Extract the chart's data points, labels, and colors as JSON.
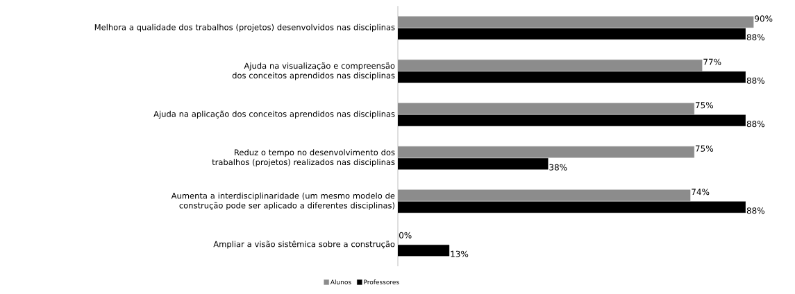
{
  "chart_data": {
    "type": "bar",
    "orientation": "horizontal",
    "categories": [
      "Melhora a qualidade dos trabalhos (projetos) desenvolvidos nas disciplinas",
      "Ajuda na visualização e compreensão dos conceitos aprendidos nas disciplinas",
      "Ajuda na aplicação dos conceitos aprendidos nas disciplinas",
      "Reduz o tempo no desenvolvimento dos trabalhos (projetos) realizados nas disciplinas",
      "Aumenta a interdisciplinaridade (um mesmo modelo de construção pode ser aplicado a diferentes disciplinas)",
      "Ampliar a visão sistêmica sobre a construção"
    ],
    "series": [
      {
        "name": "Alunos",
        "color": "#8c8c8c",
        "values": [
          90,
          77,
          75,
          75,
          74,
          0
        ],
        "value_labels": [
          "90%",
          "77%",
          "75%",
          "75%",
          "74%",
          "0%"
        ]
      },
      {
        "name": "Professores",
        "color": "#000000",
        "values": [
          88,
          88,
          88,
          38,
          88,
          13
        ],
        "value_labels": [
          "88%",
          "88%",
          "88%",
          "38%",
          "88%",
          "13%"
        ]
      }
    ],
    "legend": "bottom",
    "tick_labels": "y",
    "grid": false
  }
}
